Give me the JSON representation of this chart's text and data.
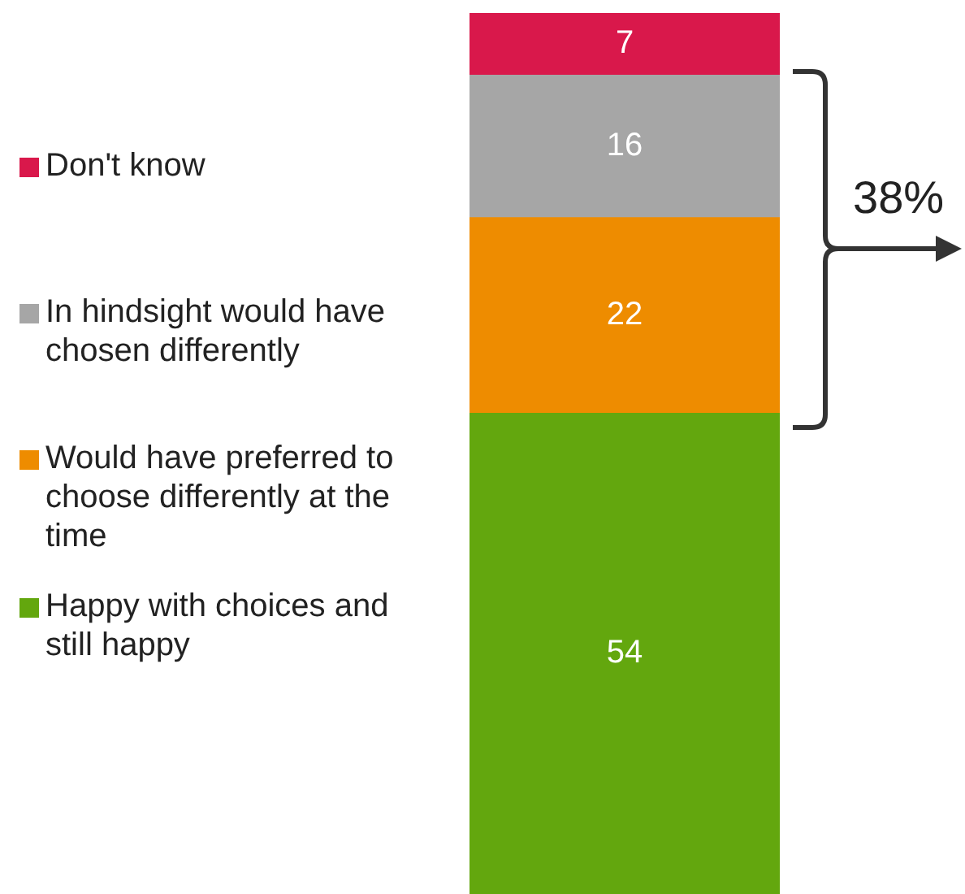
{
  "chart_data": {
    "type": "bar",
    "stacked": true,
    "categories": [
      null
    ],
    "data_labels": true,
    "legend": "left",
    "tick_labels": false,
    "series": [
      {
        "name": "Happy with choices and still happy",
        "color": "#63a70e",
        "values": [
          54
        ]
      },
      {
        "name": "Would have preferred to choose differently at the time",
        "color": "#ee8c00",
        "values": [
          22
        ]
      },
      {
        "name": "In hindsight would have chosen differently",
        "color": "#a6a6a6",
        "values": [
          16
        ]
      },
      {
        "name": "Don't know",
        "color": "#d9184b",
        "values": [
          7
        ]
      }
    ],
    "annotations": [
      "38%"
    ]
  }
}
